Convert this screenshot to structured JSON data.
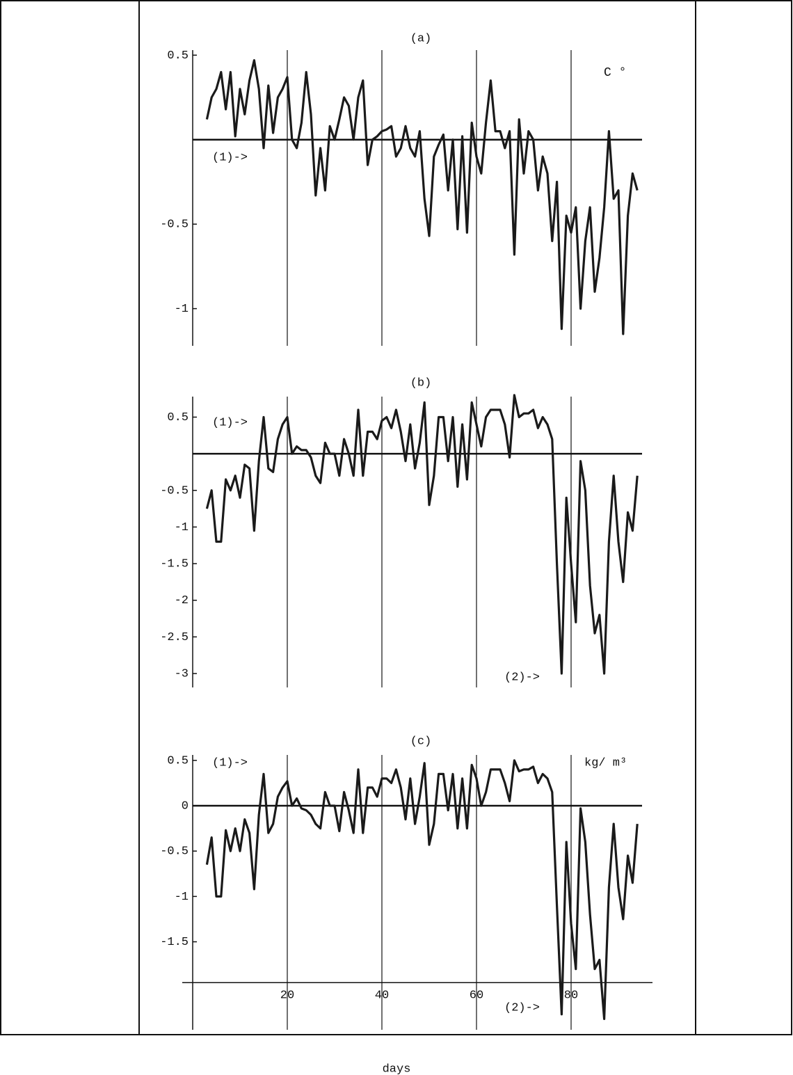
{
  "chart_data": [
    {
      "type": "line",
      "title": "(a)",
      "color": "#1a1a1a",
      "xlim": [
        0,
        95
      ],
      "ylim": [
        -1.22,
        0.53
      ],
      "xticks": [
        20,
        40,
        60,
        80
      ],
      "show_xtick_labels": false,
      "yticks": [
        0.5,
        -0.5,
        -1
      ],
      "grid": true,
      "hline": 0,
      "annotations": [
        "(1)->",
        "C °"
      ],
      "x": [
        3,
        4,
        5,
        6,
        7,
        8,
        9,
        10,
        11,
        12,
        13,
        14,
        15,
        16,
        17,
        18,
        19,
        20,
        21,
        22,
        23,
        24,
        25,
        26,
        27,
        28,
        29,
        30,
        31,
        32,
        33,
        34,
        35,
        36,
        37,
        38,
        39,
        40,
        41,
        42,
        43,
        44,
        45,
        46,
        47,
        48,
        49,
        50,
        51,
        52,
        53,
        54,
        55,
        56,
        57,
        58,
        59,
        60,
        61,
        62,
        63,
        64,
        65,
        66,
        67,
        68,
        69,
        70,
        71,
        72,
        73,
        74,
        75,
        76,
        77,
        78,
        79,
        80,
        81,
        82,
        83,
        84,
        85,
        86,
        87,
        88,
        89,
        90,
        91,
        92,
        93,
        94
      ],
      "values": [
        0.12,
        0.25,
        0.3,
        0.4,
        0.18,
        0.4,
        0.02,
        0.3,
        0.15,
        0.35,
        0.47,
        0.3,
        -0.05,
        0.32,
        0.04,
        0.25,
        0.3,
        0.37,
        0.0,
        -0.05,
        0.1,
        0.4,
        0.15,
        -0.33,
        -0.05,
        -0.3,
        0.08,
        0.0,
        0.12,
        0.25,
        0.2,
        0.0,
        0.25,
        0.35,
        -0.15,
        0.0,
        0.02,
        0.05,
        0.06,
        0.08,
        -0.1,
        -0.05,
        0.08,
        -0.05,
        -0.1,
        0.05,
        -0.35,
        -0.57,
        -0.1,
        -0.03,
        0.03,
        -0.3,
        0.0,
        -0.53,
        0.02,
        -0.55,
        0.1,
        -0.1,
        -0.2,
        0.1,
        0.35,
        0.05,
        0.05,
        -0.05,
        0.05,
        -0.68,
        0.12,
        -0.2,
        0.05,
        0.0,
        -0.3,
        -0.1,
        -0.2,
        -0.6,
        -0.25,
        -1.12,
        -0.45,
        -0.55,
        -0.4,
        -1.0,
        -0.6,
        -0.4,
        -0.9,
        -0.7,
        -0.4,
        0.05,
        -0.35,
        -0.3,
        -1.15,
        -0.45,
        -0.2,
        -0.3
      ]
    },
    {
      "type": "line",
      "title": "(b)",
      "color": "#1a1a1a",
      "xlim": [
        0,
        95
      ],
      "ylim": [
        -3.19,
        0.78
      ],
      "xticks": [
        20,
        40,
        60,
        80
      ],
      "show_xtick_labels": false,
      "yticks": [
        0.5,
        -0.5,
        -1,
        -1.5,
        -2,
        -2.5,
        -3
      ],
      "grid": true,
      "hline": 0,
      "annotations": [
        "(1)->",
        "(2)->"
      ],
      "x": [
        3,
        4,
        5,
        6,
        7,
        8,
        9,
        10,
        11,
        12,
        13,
        14,
        15,
        16,
        17,
        18,
        19,
        20,
        21,
        22,
        23,
        24,
        25,
        26,
        27,
        28,
        29,
        30,
        31,
        32,
        33,
        34,
        35,
        36,
        37,
        38,
        39,
        40,
        41,
        42,
        43,
        44,
        45,
        46,
        47,
        48,
        49,
        50,
        51,
        52,
        53,
        54,
        55,
        56,
        57,
        58,
        59,
        60,
        61,
        62,
        63,
        64,
        65,
        66,
        67,
        68,
        69,
        70,
        71,
        72,
        73,
        74,
        75,
        76,
        77,
        78,
        79,
        80,
        81,
        82,
        83,
        84,
        85,
        86,
        87,
        88,
        89,
        90,
        91,
        92,
        93,
        94
      ],
      "values": [
        -0.75,
        -0.5,
        -1.2,
        -1.2,
        -0.35,
        -0.5,
        -0.3,
        -0.6,
        -0.15,
        -0.2,
        -1.05,
        -0.1,
        0.5,
        -0.2,
        -0.25,
        0.2,
        0.4,
        0.5,
        0.0,
        0.1,
        0.05,
        0.05,
        -0.05,
        -0.3,
        -0.4,
        0.15,
        0.0,
        0.0,
        -0.3,
        0.2,
        0.0,
        -0.3,
        0.6,
        -0.3,
        0.3,
        0.3,
        0.2,
        0.45,
        0.5,
        0.35,
        0.6,
        0.3,
        -0.1,
        0.4,
        -0.2,
        0.15,
        0.7,
        -0.7,
        -0.3,
        0.5,
        0.5,
        -0.1,
        0.5,
        -0.45,
        0.4,
        -0.35,
        0.7,
        0.4,
        0.1,
        0.5,
        0.6,
        0.6,
        0.6,
        0.4,
        -0.05,
        0.8,
        0.5,
        0.55,
        0.55,
        0.6,
        0.35,
        0.5,
        0.4,
        0.2,
        -1.5,
        -3.0,
        -0.6,
        -1.5,
        -2.3,
        -0.1,
        -0.5,
        -1.8,
        -2.45,
        -2.2,
        -3.0,
        -1.2,
        -0.3,
        -1.2,
        -1.75,
        -0.8,
        -1.05,
        -0.3
      ]
    },
    {
      "type": "line",
      "title": "(c)",
      "color": "#1a1a1a",
      "xlim": [
        0,
        95
      ],
      "ylim": [
        -2.47,
        0.56
      ],
      "xticks": [
        20,
        40,
        60,
        80
      ],
      "show_xtick_labels": true,
      "yticks": [
        0.5,
        0,
        -0.5,
        -1,
        -1.5
      ],
      "grid": true,
      "hline": 0,
      "x_axis_at": -1.95,
      "xlabel": "days",
      "annotations": [
        "(1)->",
        "kg/ m³",
        "(2)->"
      ],
      "x": [
        3,
        4,
        5,
        6,
        7,
        8,
        9,
        10,
        11,
        12,
        13,
        14,
        15,
        16,
        17,
        18,
        19,
        20,
        21,
        22,
        23,
        24,
        25,
        26,
        27,
        28,
        29,
        30,
        31,
        32,
        33,
        34,
        35,
        36,
        37,
        38,
        39,
        40,
        41,
        42,
        43,
        44,
        45,
        46,
        47,
        48,
        49,
        50,
        51,
        52,
        53,
        54,
        55,
        56,
        57,
        58,
        59,
        60,
        61,
        62,
        63,
        64,
        65,
        66,
        67,
        68,
        69,
        70,
        71,
        72,
        73,
        74,
        75,
        76,
        77,
        78,
        79,
        80,
        81,
        82,
        83,
        84,
        85,
        86,
        87,
        88,
        89,
        90,
        91,
        92,
        93,
        94
      ],
      "values": [
        -0.65,
        -0.35,
        -1.0,
        -1.0,
        -0.27,
        -0.5,
        -0.25,
        -0.5,
        -0.15,
        -0.3,
        -0.92,
        -0.1,
        0.35,
        -0.3,
        -0.2,
        0.1,
        0.2,
        0.27,
        0.0,
        0.08,
        -0.03,
        -0.05,
        -0.1,
        -0.2,
        -0.25,
        0.15,
        0.0,
        0.0,
        -0.28,
        0.15,
        -0.05,
        -0.3,
        0.4,
        -0.3,
        0.2,
        0.2,
        0.1,
        0.3,
        0.3,
        0.25,
        0.4,
        0.2,
        -0.15,
        0.3,
        -0.2,
        0.1,
        0.47,
        -0.43,
        -0.2,
        0.35,
        0.35,
        -0.05,
        0.35,
        -0.25,
        0.3,
        -0.25,
        0.45,
        0.3,
        0.0,
        0.15,
        0.4,
        0.4,
        0.4,
        0.25,
        0.05,
        0.5,
        0.38,
        0.4,
        0.4,
        0.43,
        0.25,
        0.35,
        0.3,
        0.15,
        -1.1,
        -2.3,
        -0.4,
        -1.3,
        -1.8,
        -0.03,
        -0.4,
        -1.2,
        -1.8,
        -1.7,
        -2.35,
        -0.9,
        -0.2,
        -0.9,
        -1.25,
        -0.55,
        -0.85,
        -0.2
      ]
    }
  ]
}
